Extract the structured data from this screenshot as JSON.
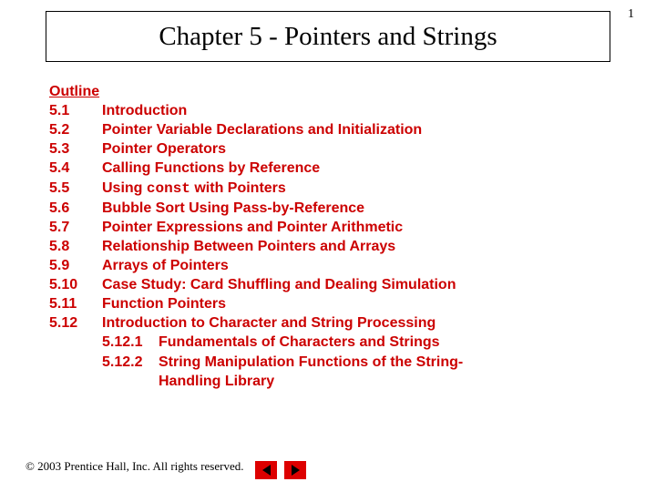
{
  "page_number": "1",
  "title": "Chapter 5 - Pointers and Strings",
  "outline_heading": "Outline",
  "colors": {
    "outline_text": "#cc0000",
    "nav_bg": "#dd0000",
    "background": "#ffffff"
  },
  "typography": {
    "title_font": "Times New Roman",
    "title_size_pt": 29,
    "outline_font": "Arial",
    "outline_size_pt": 16,
    "outline_weight": "bold",
    "footer_font": "Times New Roman",
    "footer_size_pt": 13
  },
  "items": [
    {
      "num": "5.1",
      "text": "Introduction"
    },
    {
      "num": "5.2",
      "text": "Pointer Variable Declarations and Initialization"
    },
    {
      "num": "5.3",
      "text": "Pointer Operators"
    },
    {
      "num": "5.4",
      "text": "Calling Functions by Reference"
    },
    {
      "num": "5.5",
      "text_pre": "Using ",
      "text_mono": "const",
      "text_post": " with Pointers"
    },
    {
      "num": "5.6",
      "text": "Bubble Sort Using Pass-by-Reference"
    },
    {
      "num": "5.7",
      "text": "Pointer Expressions and Pointer Arithmetic"
    },
    {
      "num": "5.8",
      "text": "Relationship Between Pointers and Arrays"
    },
    {
      "num": "5.9",
      "text": "Arrays of Pointers"
    },
    {
      "num": "5.10",
      "text": "Case Study: Card Shuffling and Dealing Simulation"
    },
    {
      "num": "5.11",
      "text": "Function Pointers"
    },
    {
      "num": "5.12",
      "text": "Introduction to Character and String Processing"
    }
  ],
  "subitems": [
    {
      "num": "5.12.1",
      "text": "Fundamentals of Characters and Strings"
    },
    {
      "num": "5.12.2",
      "text": "String Manipulation Functions of the String-",
      "cont": "Handling Library"
    }
  ],
  "footer": "© 2003 Prentice Hall, Inc.  All rights reserved."
}
